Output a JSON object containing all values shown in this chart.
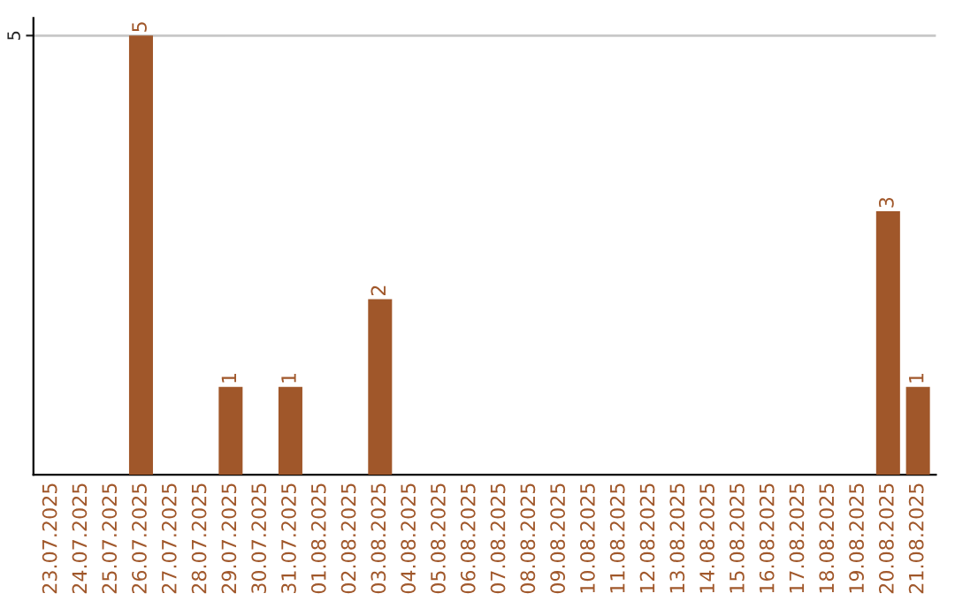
{
  "chart_data": {
    "type": "bar",
    "categories": [
      "23.07.2025",
      "24.07.2025",
      "25.07.2025",
      "26.07.2025",
      "27.07.2025",
      "28.07.2025",
      "29.07.2025",
      "30.07.2025",
      "31.07.2025",
      "01.08.2025",
      "02.08.2025",
      "03.08.2025",
      "04.08.2025",
      "05.08.2025",
      "06.08.2025",
      "07.08.2025",
      "08.08.2025",
      "09.08.2025",
      "10.08.2025",
      "11.08.2025",
      "12.08.2025",
      "13.08.2025",
      "14.08.2025",
      "15.08.2025",
      "16.08.2025",
      "17.08.2025",
      "18.08.2025",
      "19.08.2025",
      "20.08.2025",
      "21.08.2025"
    ],
    "values": [
      0,
      0,
      0,
      5,
      0,
      0,
      1,
      0,
      1,
      0,
      0,
      2,
      0,
      0,
      0,
      0,
      0,
      0,
      0,
      0,
      0,
      0,
      0,
      0,
      0,
      0,
      0,
      0,
      3,
      1
    ],
    "value_labels": [
      null,
      null,
      null,
      "5",
      null,
      null,
      "1",
      null,
      "1",
      null,
      null,
      "2",
      null,
      null,
      null,
      null,
      null,
      null,
      null,
      null,
      null,
      null,
      null,
      null,
      null,
      null,
      null,
      null,
      "3",
      "1"
    ],
    "color": "#a0572a",
    "ylim": [
      0,
      5.2
    ],
    "yticks": [
      5
    ],
    "grid": "y"
  }
}
